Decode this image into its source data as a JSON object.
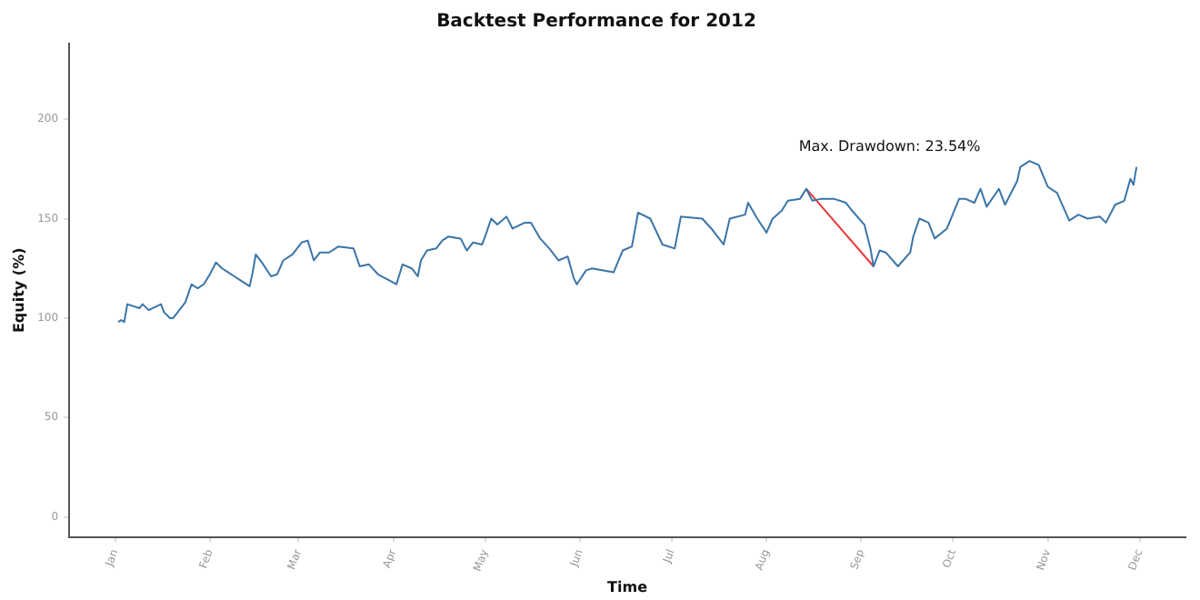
{
  "chart_data": {
    "type": "line",
    "title": "Backtest Performance for 2012",
    "xlabel": "Time",
    "ylabel": "Equity (%)",
    "xlim": [
      "2011-12-17",
      "2012-12-16"
    ],
    "ylim": [
      -10,
      238
    ],
    "yticks": [
      0,
      50,
      100,
      150,
      200
    ],
    "xticks": [
      {
        "value": "2012-01-01",
        "label": "Jan"
      },
      {
        "value": "2012-02-01",
        "label": "Feb"
      },
      {
        "value": "2012-03-01",
        "label": "Mar"
      },
      {
        "value": "2012-04-01",
        "label": "Apr"
      },
      {
        "value": "2012-05-01",
        "label": "May"
      },
      {
        "value": "2012-06-01",
        "label": "Jun"
      },
      {
        "value": "2012-07-01",
        "label": "Jul"
      },
      {
        "value": "2012-08-01",
        "label": "Aug"
      },
      {
        "value": "2012-09-01",
        "label": "Sep"
      },
      {
        "value": "2012-10-01",
        "label": "Oct"
      },
      {
        "value": "2012-11-01",
        "label": "Nov"
      },
      {
        "value": "2012-12-01",
        "label": "Dec"
      }
    ],
    "grid": false,
    "legend": false,
    "marker": "none",
    "series": [
      {
        "color": "#3a75a8",
        "x": [
          "2012-01-02",
          "2012-01-03",
          "2012-01-04",
          "2012-01-05",
          "2012-01-09",
          "2012-01-10",
          "2012-01-12",
          "2012-01-16",
          "2012-01-17",
          "2012-01-19",
          "2012-01-20",
          "2012-01-23",
          "2012-01-24",
          "2012-01-26",
          "2012-01-28",
          "2012-01-30",
          "2012-02-01",
          "2012-02-03",
          "2012-02-05",
          "2012-02-07",
          "2012-02-09",
          "2012-02-11",
          "2012-02-14",
          "2012-02-15",
          "2012-02-16",
          "2012-02-18",
          "2012-02-21",
          "2012-02-23",
          "2012-02-25",
          "2012-02-28",
          "2012-03-02",
          "2012-03-04",
          "2012-03-06",
          "2012-03-08",
          "2012-03-11",
          "2012-03-14",
          "2012-03-19",
          "2012-03-21",
          "2012-03-24",
          "2012-03-27",
          "2012-04-02",
          "2012-04-04",
          "2012-04-07",
          "2012-04-09",
          "2012-04-10",
          "2012-04-12",
          "2012-04-15",
          "2012-04-17",
          "2012-04-19",
          "2012-04-23",
          "2012-04-25",
          "2012-04-27",
          "2012-04-30",
          "2012-05-01",
          "2012-05-03",
          "2012-05-05",
          "2012-05-08",
          "2012-05-10",
          "2012-05-14",
          "2012-05-16",
          "2012-05-19",
          "2012-05-22",
          "2012-05-25",
          "2012-05-28",
          "2012-05-30",
          "2012-05-31",
          "2012-06-03",
          "2012-06-05",
          "2012-06-12",
          "2012-06-15",
          "2012-06-18",
          "2012-06-20",
          "2012-06-24",
          "2012-06-28",
          "2012-07-02",
          "2012-07-04",
          "2012-07-11",
          "2012-07-14",
          "2012-07-18",
          "2012-07-20",
          "2012-07-25",
          "2012-07-26",
          "2012-07-29",
          "2012-08-01",
          "2012-08-03",
          "2012-08-06",
          "2012-08-08",
          "2012-08-12",
          "2012-08-14",
          "2012-08-16",
          "2012-08-19",
          "2012-08-23",
          "2012-08-27",
          "2012-08-29",
          "2012-09-02",
          "2012-09-04",
          "2012-09-05",
          "2012-09-07",
          "2012-09-09",
          "2012-09-13",
          "2012-09-17",
          "2012-09-18",
          "2012-09-20",
          "2012-09-23",
          "2012-09-25",
          "2012-09-29",
          "2012-10-03",
          "2012-10-05",
          "2012-10-08",
          "2012-10-10",
          "2012-10-12",
          "2012-10-16",
          "2012-10-18",
          "2012-10-22",
          "2012-10-23",
          "2012-10-26",
          "2012-10-29",
          "2012-11-01",
          "2012-11-04",
          "2012-11-06",
          "2012-11-08",
          "2012-11-11",
          "2012-11-14",
          "2012-11-18",
          "2012-11-20",
          "2012-11-23",
          "2012-11-26",
          "2012-11-28",
          "2012-11-29",
          "2012-11-30"
        ],
        "values": [
          98,
          99,
          98,
          107,
          105,
          107,
          104,
          107,
          103,
          100,
          100,
          106,
          108,
          117,
          115,
          117,
          122,
          128,
          125,
          123,
          121,
          119,
          116,
          123,
          132,
          128,
          121,
          122,
          129,
          132,
          138,
          139,
          129,
          133,
          133,
          136,
          135,
          126,
          127,
          122,
          117,
          127,
          125,
          121,
          129,
          134,
          135,
          139,
          141,
          140,
          134,
          138,
          137,
          141,
          150,
          147,
          151,
          145,
          148,
          148,
          140,
          135,
          129,
          131,
          120,
          117,
          124,
          125,
          123,
          134,
          136,
          153,
          150,
          137,
          135,
          151,
          150,
          145,
          137,
          150,
          152,
          158,
          150,
          143,
          150,
          154,
          159,
          160,
          165,
          159,
          160,
          160,
          158,
          154,
          147,
          135,
          126,
          134,
          133,
          126,
          133,
          141,
          150,
          148,
          140,
          145,
          160,
          160,
          158,
          165,
          156,
          165,
          157,
          169,
          176,
          179,
          177,
          166,
          163,
          156,
          149,
          152,
          150,
          151,
          148,
          157,
          159,
          170,
          167,
          176
        ]
      },
      {
        "color": "#e8393a",
        "x": [
          "2012-08-14",
          "2012-09-05"
        ],
        "values": [
          165,
          126
        ]
      }
    ],
    "annotations": [
      "Max. Drawdown: 23.54%"
    ]
  }
}
